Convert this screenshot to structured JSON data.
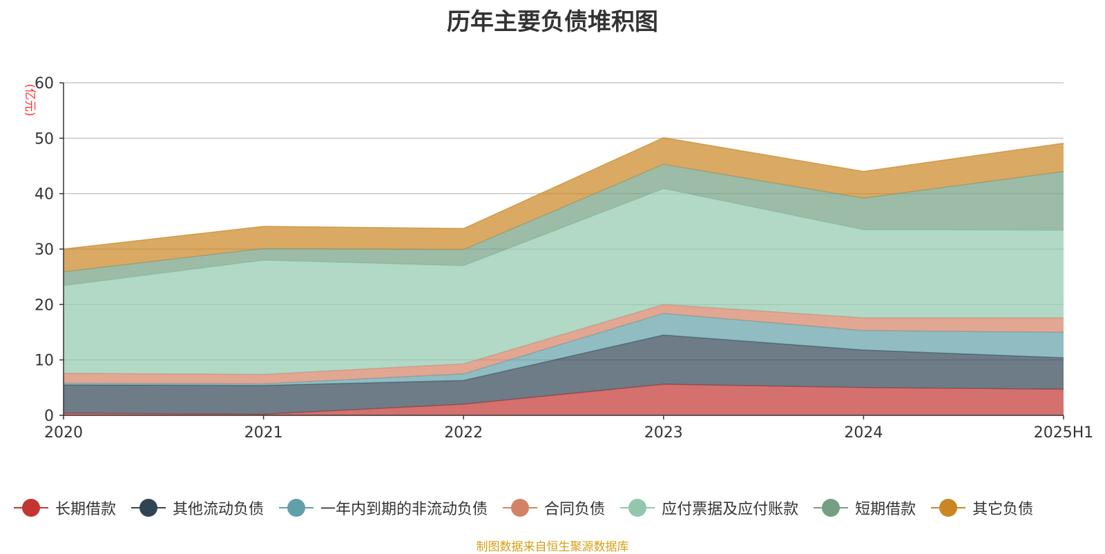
{
  "chart_data": {
    "type": "area",
    "stacked": true,
    "title": "历年主要负债堆积图",
    "ylabel": "(亿元)",
    "xlabel": "",
    "categories": [
      "2020",
      "2021",
      "2022",
      "2023",
      "2024",
      "2025H1"
    ],
    "ylim": [
      0,
      60
    ],
    "yticks": [
      "0",
      "10",
      "20",
      "30",
      "40",
      "50",
      "60"
    ],
    "grid": true,
    "legend_position": "bottom",
    "series": [
      {
        "name": "长期借款",
        "color": "#c23531",
        "values": [
          0.4,
          0.2,
          2.0,
          5.6,
          5.0,
          4.7
        ]
      },
      {
        "name": "其他流动负债",
        "color": "#2f4554",
        "values": [
          5.1,
          5.2,
          4.3,
          8.9,
          6.8,
          5.7
        ]
      },
      {
        "name": "一年内到期的非流动负债",
        "color": "#61a0a8",
        "values": [
          0.3,
          0.3,
          1.2,
          3.9,
          3.5,
          4.6
        ]
      },
      {
        "name": "合同负债",
        "color": "#d48265",
        "values": [
          1.8,
          1.7,
          1.8,
          1.6,
          2.3,
          2.6
        ]
      },
      {
        "name": "应付票据及应付账款",
        "color": "#91c7ae",
        "values": [
          15.8,
          20.6,
          17.7,
          20.9,
          15.9,
          15.8
        ]
      },
      {
        "name": "短期借款",
        "color": "#749f83",
        "values": [
          2.5,
          2.1,
          2.9,
          4.4,
          5.7,
          10.6
        ]
      },
      {
        "name": "其它负债",
        "color": "#ca8622",
        "values": [
          4.1,
          4.0,
          3.8,
          4.8,
          4.8,
          5.1
        ]
      }
    ]
  },
  "source_note": "制图数据来自恒生聚源数据库"
}
